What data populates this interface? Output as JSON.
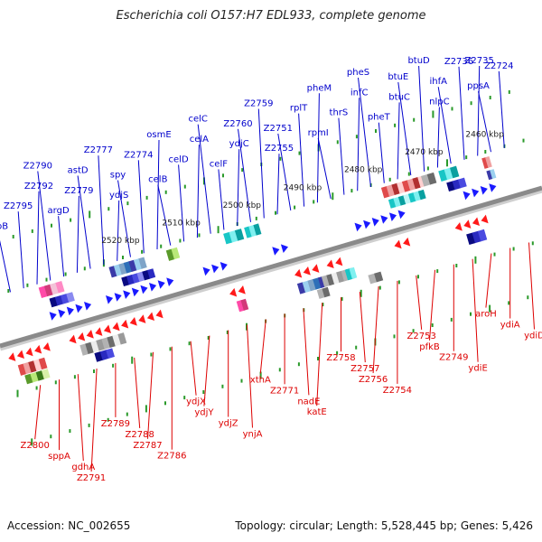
{
  "title": "Escherichia coli O157:H7 EDL933, complete genome",
  "accession": "Accession: NC_002655",
  "topology": "Topology: circular; Length: 5,528,445 bp; Genes: 5,426",
  "colors": {
    "forward_label": "#0000cc",
    "reverse_label": "#dd0000",
    "forward_arrow": "#1a1aff",
    "reverse_arrow": "#ff1a1a",
    "backbone": "#8a8a8a",
    "ticks": "#2a9a2a"
  },
  "scale_labels": [
    "2460 kbp",
    "2470 kbp",
    "2480 kbp",
    "2490 kbp",
    "2500 kbp",
    "2510 kbp",
    "2520 kbp"
  ],
  "forward_genes": [
    "topB",
    "Z2795",
    "Z2792",
    "Z2790",
    "argD",
    "Z2779",
    "astD",
    "Z2777",
    "ydjS",
    "spy",
    "Z2774",
    "osmE",
    "celB",
    "celD",
    "celA",
    "celC",
    "celF",
    "ydjC",
    "Z2760",
    "Z2759",
    "Z2755",
    "Z2751",
    "rplT",
    "pheM",
    "rpmI",
    "thrS",
    "infC",
    "pheS",
    "pheT",
    "btuC",
    "btuE",
    "btuD",
    "nlpC",
    "ihfA",
    "Z2736",
    "Z2735",
    "ppsA",
    "Z2724"
  ],
  "reverse_genes": [
    "Z2800",
    "sppA",
    "gdhA",
    "Z2791",
    "Z2789",
    "Z2788",
    "Z2787",
    "Z2786",
    "ydjX",
    "ydjY",
    "ydjZ",
    "ynjA",
    "xthA",
    "Z2771",
    "nadE",
    "katE",
    "Z2758",
    "Z2757",
    "Z2756",
    "Z2754",
    "Z2753",
    "pfkB",
    "Z2749",
    "ydiE",
    "aroH",
    "ydiA",
    "ydiD"
  ]
}
